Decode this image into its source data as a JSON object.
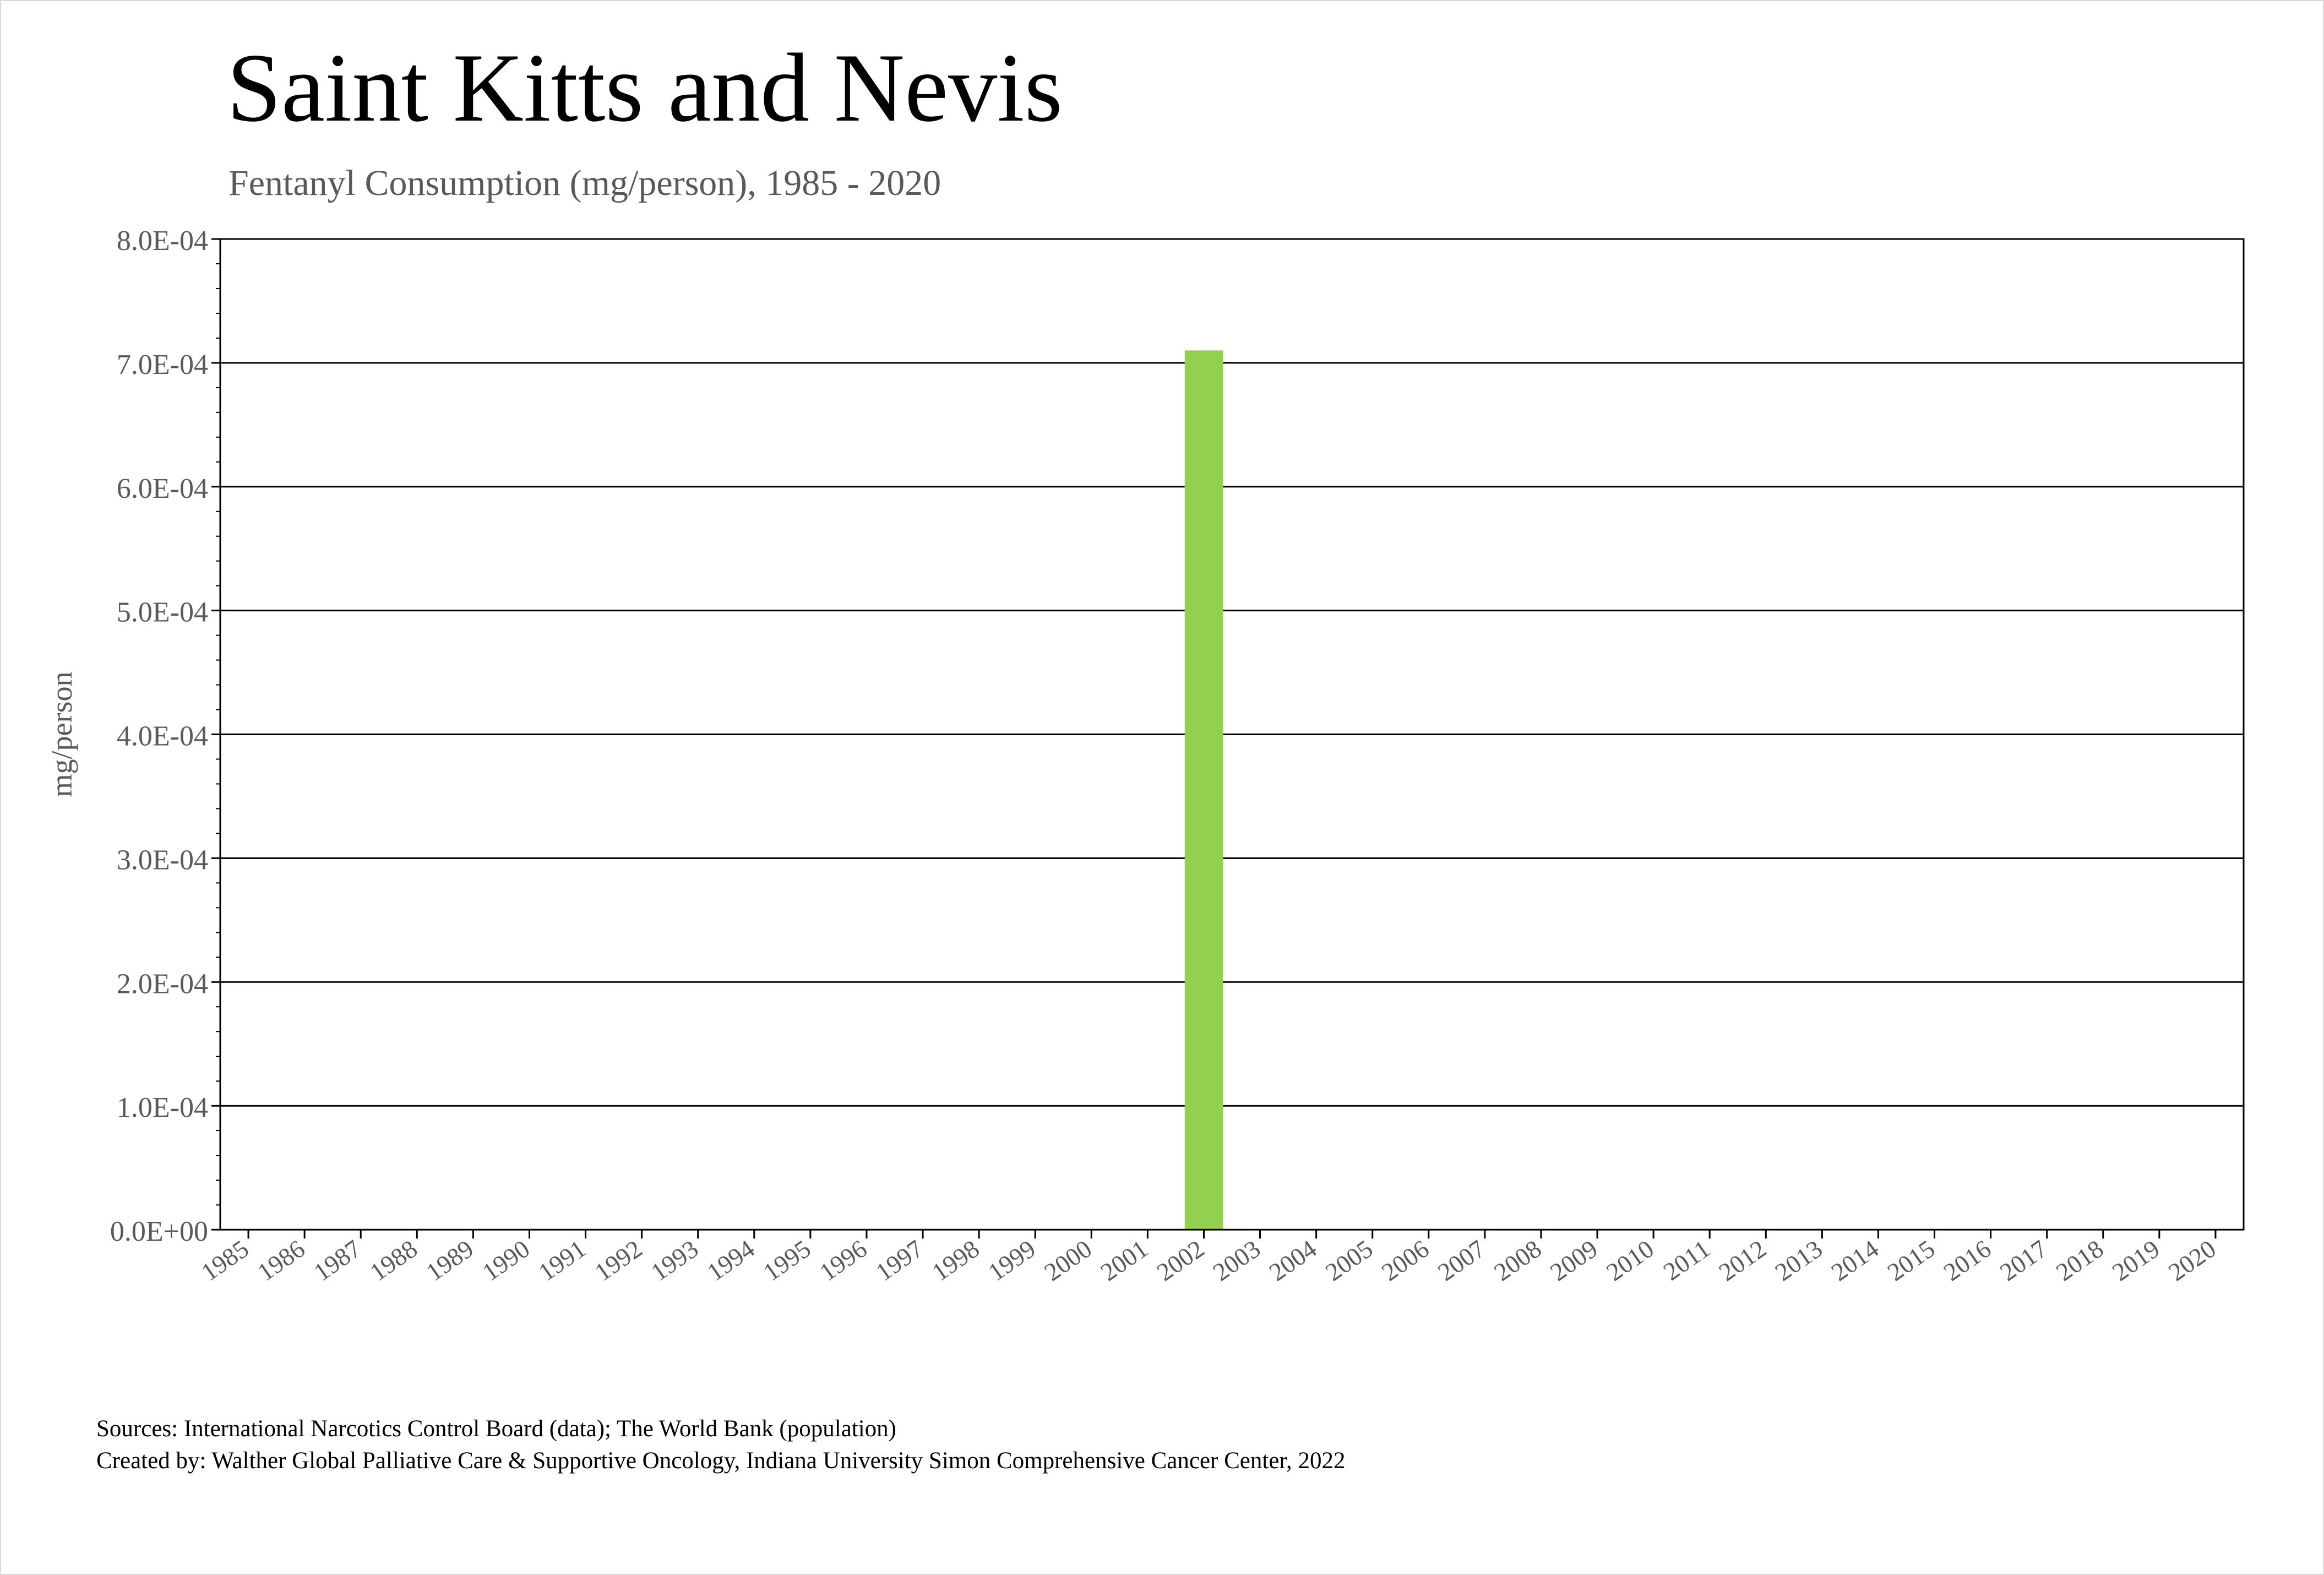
{
  "chart_data": {
    "type": "bar",
    "title": "Saint Kitts and Nevis",
    "subtitle": "Fentanyl Consumption (mg/person), 1985 - 2020",
    "xlabel": "",
    "ylabel": "mg/person",
    "ylim": [
      0,
      0.0008
    ],
    "yticks": [
      "0.0E+00",
      "1.0E-04",
      "2.0E-04",
      "3.0E-04",
      "4.0E-04",
      "5.0E-04",
      "6.0E-04",
      "7.0E-04",
      "8.0E-04"
    ],
    "grid": true,
    "bar_color": "#92d050",
    "categories": [
      "1985",
      "1986",
      "1987",
      "1988",
      "1989",
      "1990",
      "1991",
      "1992",
      "1993",
      "1994",
      "1995",
      "1996",
      "1997",
      "1998",
      "1999",
      "2000",
      "2001",
      "2002",
      "2003",
      "2004",
      "2005",
      "2006",
      "2007",
      "2008",
      "2009",
      "2010",
      "2011",
      "2012",
      "2013",
      "2014",
      "2015",
      "2016",
      "2017",
      "2018",
      "2019",
      "2020"
    ],
    "values": [
      0,
      0,
      0,
      0,
      0,
      0,
      0,
      0,
      0,
      0,
      0,
      0,
      0,
      0,
      0,
      0,
      0,
      0.00071,
      0,
      0,
      0,
      0,
      0,
      0,
      0,
      0,
      0,
      0,
      0,
      0,
      0,
      0,
      0,
      0,
      0,
      0
    ]
  },
  "footer": {
    "sources": "Sources: International Narcotics Control Board (data); The World Bank (population)",
    "created_by": "Created by: Walther Global Palliative Care & Supportive Oncology, Indiana University Simon Comprehensive Cancer Center, 2022"
  }
}
